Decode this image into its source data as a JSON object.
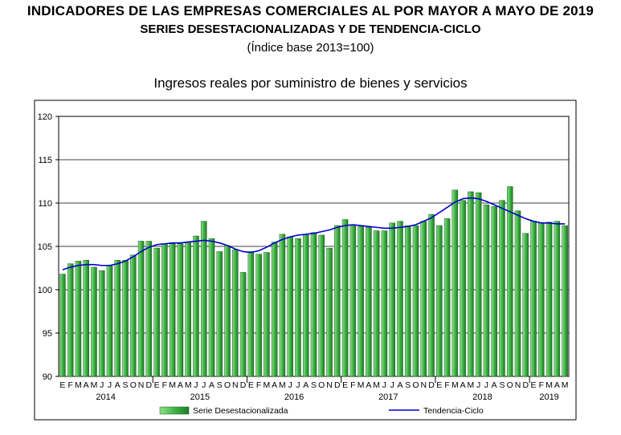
{
  "header": {
    "title_line1": "INDICADORES DE LAS EMPRESAS COMERCIALES AL POR MAYOR A MAYO DE 2019",
    "title_line2": "SERIES DESESTACIONALIZADAS Y DE TENDENCIA-CICLO",
    "title_line3": "(Índice base 2013=100)"
  },
  "chart_data": {
    "type": "bar",
    "title": "Ingresos reales por suministro de bienes y servicios",
    "xlabel": "",
    "ylabel": "",
    "ylim": [
      90,
      120
    ],
    "yticks": [
      90,
      95,
      100,
      105,
      110,
      115,
      120
    ],
    "grid": true,
    "legend_position": "bottom",
    "month_labels": [
      "E",
      "F",
      "M",
      "A",
      "M",
      "J",
      "J",
      "A",
      "S",
      "O",
      "N",
      "D",
      "E",
      "F",
      "M",
      "A",
      "M",
      "J",
      "J",
      "A",
      "S",
      "O",
      "N",
      "D",
      "E",
      "F",
      "M",
      "A",
      "M",
      "J",
      "J",
      "A",
      "S",
      "O",
      "N",
      "D",
      "E",
      "F",
      "M",
      "A",
      "M",
      "J",
      "J",
      "A",
      "S",
      "O",
      "N",
      "D",
      "E",
      "F",
      "M",
      "A",
      "M",
      "J",
      "J",
      "A",
      "S",
      "O",
      "N",
      "D",
      "E",
      "F",
      "M",
      "A",
      "M"
    ],
    "year_labels": [
      {
        "label": "2014",
        "month_index": 5.5
      },
      {
        "label": "2015",
        "month_index": 17.5
      },
      {
        "label": "2016",
        "month_index": 29.5
      },
      {
        "label": "2017",
        "month_index": 41.5
      },
      {
        "label": "2018",
        "month_index": 53.5
      },
      {
        "label": "2019",
        "month_index": 62
      }
    ],
    "series": [
      {
        "name": "Serie Desestacionalizada",
        "kind": "bar",
        "color": "#3cb043",
        "values": [
          101.8,
          103.0,
          103.3,
          103.4,
          102.6,
          102.2,
          102.8,
          103.4,
          103.4,
          104.0,
          105.6,
          105.6,
          104.8,
          105.3,
          105.3,
          105.3,
          105.5,
          106.2,
          107.9,
          105.9,
          104.4,
          105.1,
          104.6,
          102.0,
          104.4,
          104.1,
          104.3,
          105.5,
          106.4,
          106.1,
          105.9,
          106.3,
          106.6,
          106.3,
          104.8,
          107.4,
          108.1,
          107.4,
          107.3,
          107.2,
          106.8,
          106.8,
          107.7,
          107.9,
          107.4,
          107.4,
          107.9,
          108.7,
          107.4,
          108.2,
          111.5,
          110.3,
          111.3,
          111.2,
          109.8,
          109.6,
          110.3,
          111.9,
          109.1,
          106.5,
          107.9,
          107.7,
          107.8,
          107.9,
          107.4
        ]
      },
      {
        "name": "Tendencia-Ciclo",
        "kind": "line",
        "color": "#0000cc",
        "values": [
          102.3,
          102.6,
          102.8,
          102.9,
          102.9,
          102.8,
          102.8,
          103.0,
          103.3,
          103.8,
          104.4,
          104.9,
          105.2,
          105.3,
          105.4,
          105.4,
          105.5,
          105.6,
          105.7,
          105.6,
          105.4,
          105.1,
          104.7,
          104.4,
          104.3,
          104.5,
          104.9,
          105.4,
          105.8,
          106.1,
          106.3,
          106.4,
          106.5,
          106.7,
          106.9,
          107.2,
          107.4,
          107.5,
          107.4,
          107.3,
          107.2,
          107.1,
          107.1,
          107.2,
          107.3,
          107.5,
          107.9,
          108.3,
          108.9,
          109.5,
          110.1,
          110.5,
          110.6,
          110.5,
          110.2,
          109.8,
          109.4,
          109.0,
          108.6,
          108.2,
          107.9,
          107.7,
          107.7,
          107.6,
          107.6
        ]
      }
    ]
  }
}
